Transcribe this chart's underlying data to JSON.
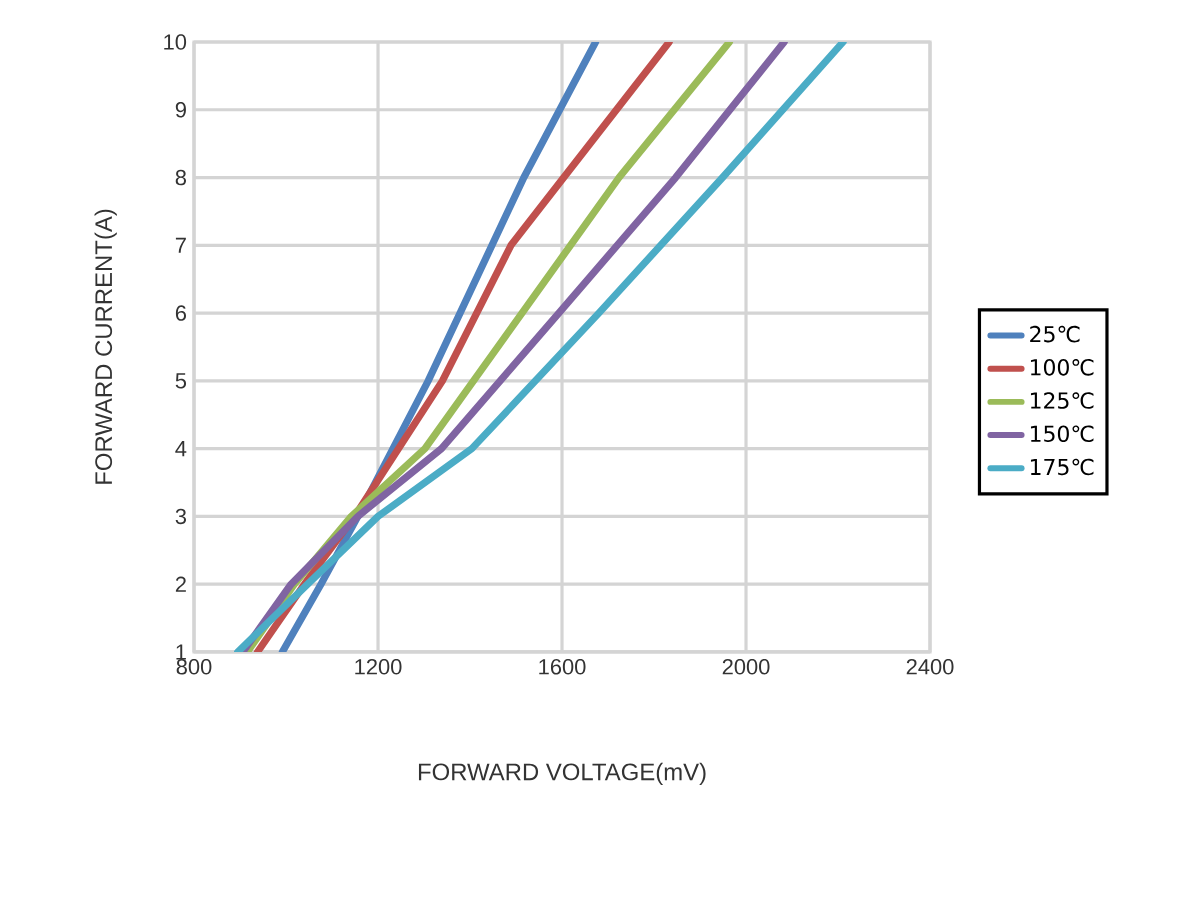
{
  "chart_data": {
    "type": "line",
    "xlabel": "FORWARD VOLTAGE(mV)",
    "ylabel": "FORWARD CURRENT(A)",
    "xlim": [
      800,
      2400
    ],
    "ylim": [
      1,
      10
    ],
    "xticks": [
      800,
      1200,
      1600,
      2000,
      2400
    ],
    "yticks": [
      1,
      2,
      3,
      4,
      5,
      6,
      7,
      8,
      9,
      10
    ],
    "grid": true,
    "legend": "right",
    "series": [
      {
        "name": "25℃",
        "color": "#4f81bd",
        "x": [
          992,
          1076,
          1156,
          1309,
          1517,
          1673
        ],
        "values": [
          1,
          2,
          3,
          5,
          8,
          10
        ]
      },
      {
        "name": "100℃",
        "color": "#c0504d",
        "x": [
          938,
          1040,
          1149,
          1340,
          1489,
          1833
        ],
        "values": [
          1,
          2,
          3,
          5,
          7,
          10
        ]
      },
      {
        "name": "125℃",
        "color": "#9bbb59",
        "x": [
          916,
          1018,
          1142,
          1302,
          1513,
          1724,
          1964
        ],
        "values": [
          1,
          2,
          3,
          4,
          6,
          8,
          10
        ]
      },
      {
        "name": "150℃",
        "color": "#8064a2",
        "x": [
          906,
          1011,
          1156,
          1338,
          1593,
          1847,
          2083
        ],
        "values": [
          1,
          2,
          3,
          4,
          6,
          8,
          10
        ]
      },
      {
        "name": "175℃",
        "color": "#4bacc6",
        "x": [
          895,
          1047,
          1200,
          1404,
          1680,
          1949,
          2211
        ],
        "values": [
          1,
          2,
          3,
          4,
          6,
          8,
          10
        ]
      }
    ]
  }
}
